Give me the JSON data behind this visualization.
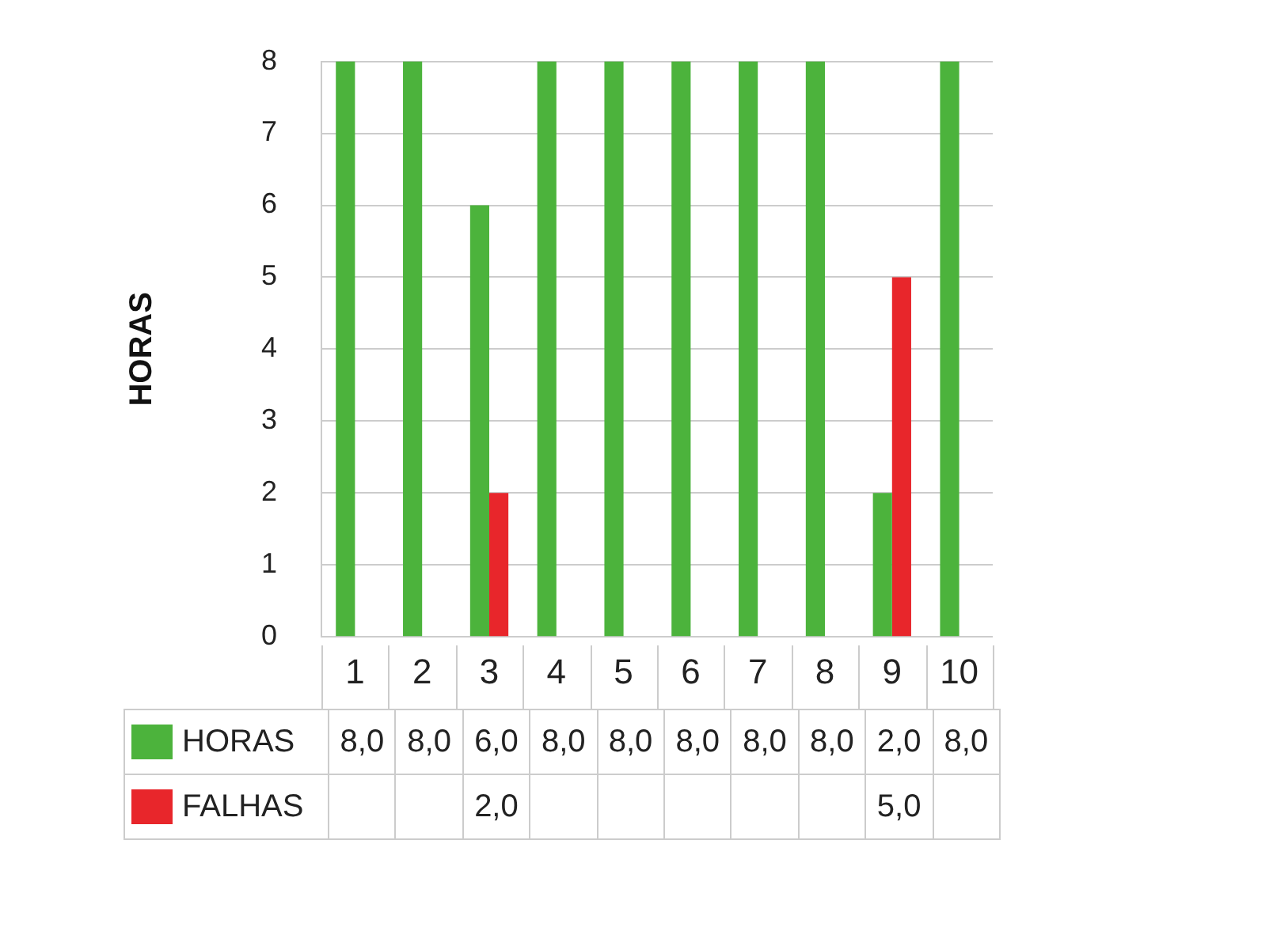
{
  "chart_data": {
    "type": "bar",
    "ylabel": "HORAS",
    "categories": [
      "1",
      "2",
      "3",
      "4",
      "5",
      "6",
      "7",
      "8",
      "9",
      "10"
    ],
    "series": [
      {
        "name": "HORAS",
        "color": "#4cb33c",
        "values": [
          8,
          8,
          6,
          8,
          8,
          8,
          8,
          8,
          2,
          8
        ],
        "value_labels": [
          "8,0",
          "8,0",
          "6,0",
          "8,0",
          "8,0",
          "8,0",
          "8,0",
          "8,0",
          "2,0",
          "8,0"
        ]
      },
      {
        "name": "FALHAS",
        "color": "#e8262b",
        "values": [
          null,
          null,
          2,
          null,
          null,
          null,
          null,
          null,
          5,
          null
        ],
        "value_labels": [
          null,
          null,
          "2,0",
          null,
          null,
          null,
          null,
          null,
          "5,0",
          null
        ]
      }
    ],
    "ylim": [
      0,
      8
    ],
    "yticks": [
      0,
      1,
      2,
      3,
      4,
      5,
      6,
      7,
      8
    ],
    "grid": "y",
    "legend": "bottom"
  }
}
